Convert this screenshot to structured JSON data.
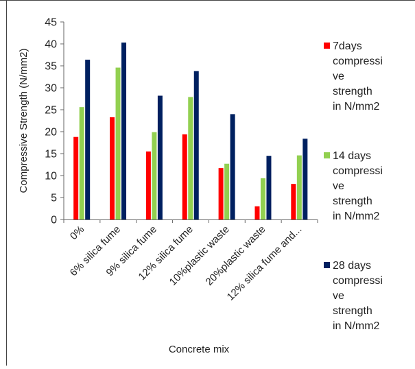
{
  "chart_data": {
    "type": "bar",
    "title": "",
    "xlabel": "Concrete mix",
    "ylabel": "Compressive Strength (N/mm2)",
    "ylim": [
      0,
      45
    ],
    "yticks": [
      "0",
      "5",
      "10",
      "15",
      "20",
      "25",
      "30",
      "35",
      "40",
      "45"
    ],
    "grid": false,
    "legend_position": "right",
    "categories": [
      "0%",
      "6% silica fume",
      "9% silica fume",
      "12% silica fume",
      "10%plastic waste",
      "20%plastic waste",
      "12% silica fume and..."
    ],
    "series": [
      {
        "name": "7days compressive strength in N/mm2",
        "legend_lines": [
          "7days",
          "compressi",
          "ve",
          "strength",
          "in N/mm2"
        ],
        "color": "#ff0000",
        "values": [
          18.8,
          23.3,
          15.5,
          19.4,
          11.7,
          3.0,
          8.1
        ]
      },
      {
        "name": "14 days compressive strength in N/mm2",
        "legend_lines": [
          "14 days",
          "compressi",
          "ve",
          "strength",
          "in N/mm2"
        ],
        "color": "#92d050",
        "values": [
          25.6,
          34.6,
          19.9,
          27.9,
          12.7,
          9.4,
          14.6
        ]
      },
      {
        "name": "28 days compressive strength in N/mm2",
        "legend_lines": [
          "28 days",
          "compressi",
          "ve",
          "strength",
          "in N/mm2"
        ],
        "color": "#002060",
        "values": [
          36.4,
          40.3,
          28.2,
          33.8,
          24.0,
          14.5,
          18.4
        ]
      }
    ]
  }
}
